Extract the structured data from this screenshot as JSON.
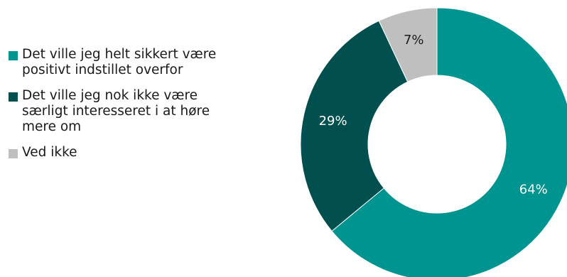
{
  "chart_data": {
    "type": "pie",
    "donut": true,
    "title": "",
    "categories": [
      "Det ville jeg helt sikkert være positivt indstillet overfor",
      "Det ville jeg nok ikke være særligt interesseret i at høre mere om",
      "Ved ikke"
    ],
    "values": [
      64,
      29,
      7
    ],
    "labels": [
      "64%",
      "29%",
      "7%"
    ],
    "colors": [
      "#009490",
      "#01504f",
      "#bfbfbf"
    ],
    "label_colors": [
      "#ffffff",
      "#ffffff",
      "#1a1a1a"
    ],
    "legend_position": "left"
  }
}
